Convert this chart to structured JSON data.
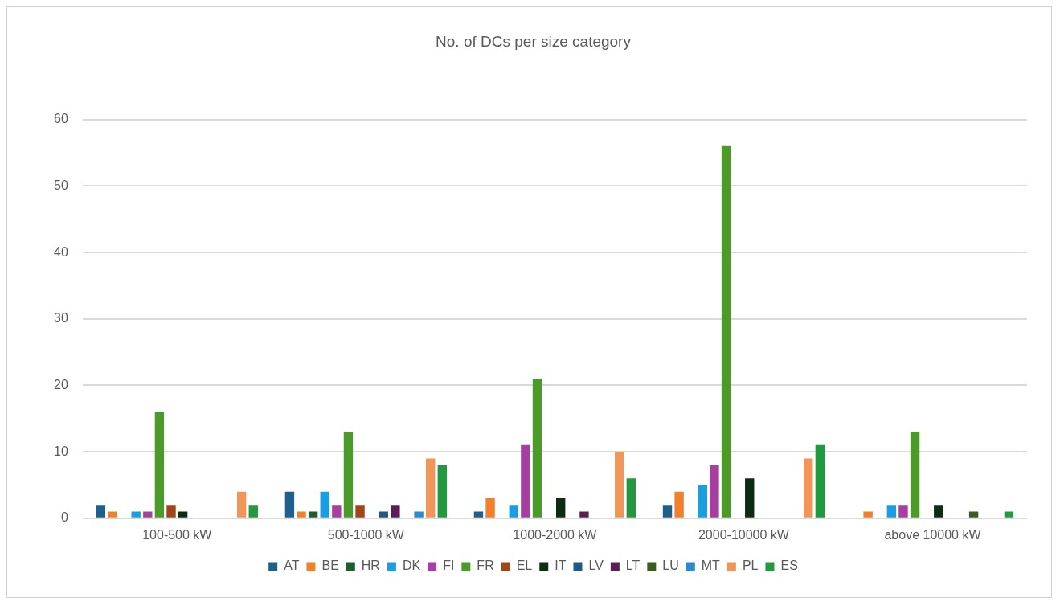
{
  "chart_data": {
    "type": "bar",
    "title": "No. of DCs per size category",
    "categories": [
      "100-500 kW",
      "500-1000 kW",
      "1000-2000 kW",
      "2000-10000 kW",
      "above 10000 kW"
    ],
    "series": [
      {
        "name": "AT",
        "color": "#1f5f8b",
        "values": [
          2,
          4,
          1,
          2,
          0
        ]
      },
      {
        "name": "BE",
        "color": "#f07f2e",
        "values": [
          1,
          1,
          3,
          4,
          1
        ]
      },
      {
        "name": "HR",
        "color": "#1e5e2e",
        "values": [
          0,
          1,
          0,
          0,
          0
        ]
      },
      {
        "name": "DK",
        "color": "#1a9ee0",
        "values": [
          1,
          4,
          2,
          5,
          2
        ]
      },
      {
        "name": "FI",
        "color": "#a53fa0",
        "values": [
          1,
          2,
          11,
          8,
          2
        ]
      },
      {
        "name": "FR",
        "color": "#4c9a2a",
        "values": [
          16,
          13,
          21,
          56,
          13
        ]
      },
      {
        "name": "EL",
        "color": "#a0461a",
        "values": [
          2,
          2,
          0,
          0,
          0
        ]
      },
      {
        "name": "IT",
        "color": "#0c2d12",
        "values": [
          1,
          0,
          3,
          6,
          2
        ]
      },
      {
        "name": "LV",
        "color": "#1d5a86",
        "values": [
          0,
          1,
          0,
          0,
          0
        ]
      },
      {
        "name": "LT",
        "color": "#5b1f55",
        "values": [
          0,
          2,
          1,
          0,
          0
        ]
      },
      {
        "name": "LU",
        "color": "#3a5d1e",
        "values": [
          0,
          0,
          0,
          0,
          1
        ]
      },
      {
        "name": "MT",
        "color": "#2b8ad0",
        "values": [
          0,
          1,
          0,
          0,
          0
        ]
      },
      {
        "name": "PL",
        "color": "#f0965a",
        "values": [
          4,
          9,
          10,
          9,
          0
        ]
      },
      {
        "name": "ES",
        "color": "#23983e",
        "values": [
          2,
          8,
          6,
          11,
          1
        ]
      }
    ],
    "ylim": [
      0,
      60
    ],
    "yticks": [
      0,
      10,
      20,
      30,
      40,
      50,
      60
    ],
    "grid": "y",
    "legend": "bottom"
  }
}
